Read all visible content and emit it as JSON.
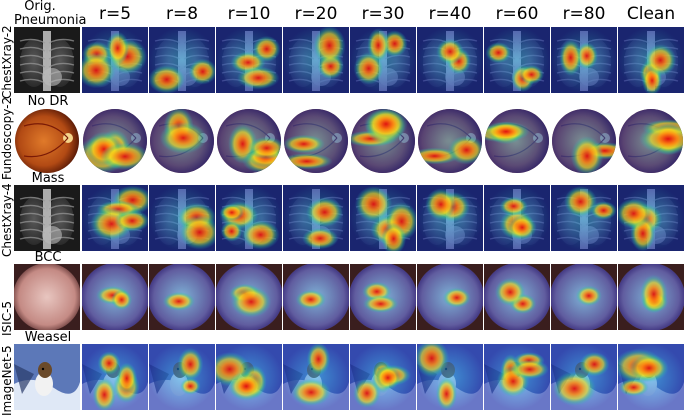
{
  "figure": {
    "orig_header_line1": "Orig.",
    "columns": [
      "r=5",
      "r=8",
      "r=10",
      "r=20",
      "r=30",
      "r=40",
      "r=60",
      "r=80",
      "Clean"
    ],
    "rows": [
      {
        "dataset": "ChestXray-2",
        "class_label": "Pneumonia",
        "image_type": "xray"
      },
      {
        "dataset": "Fundoscopy-2",
        "class_label": "No DR",
        "image_type": "fundus"
      },
      {
        "dataset": "ChestXray-4",
        "class_label": "Mass",
        "image_type": "xray"
      },
      {
        "dataset": "ISIC-5",
        "class_label": "BCC",
        "image_type": "skin"
      },
      {
        "dataset": "ImageNet-5",
        "class_label": "Weasel",
        "image_type": "natural"
      }
    ]
  }
}
